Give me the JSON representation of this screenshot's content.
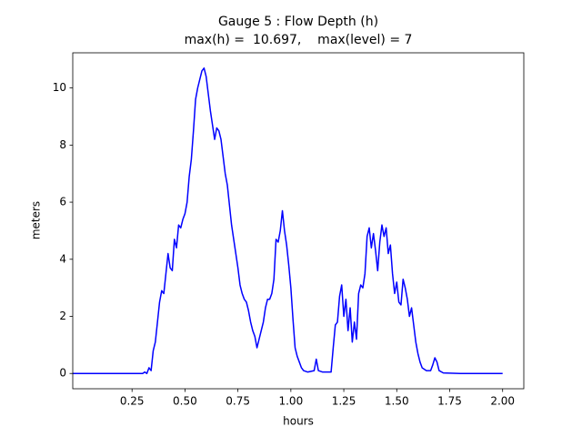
{
  "chart_data": {
    "type": "line",
    "title": "Gauge 5 : Flow Depth (h)",
    "subtitle": "max(h) =  10.697,    max(level) = 7",
    "xlabel": "hours",
    "ylabel": "meters",
    "xlim": [
      -0.03,
      2.1
    ],
    "ylim": [
      -0.535,
      11.232
    ],
    "xticks": [
      0.25,
      {
        "value": 0.5,
        "label": "0.50"
      },
      0.75,
      {
        "value": 1,
        "label": "1.00"
      },
      1.25,
      {
        "value": 1.5,
        "label": "1.50"
      },
      1.75,
      {
        "value": 2,
        "label": "2.00"
      }
    ],
    "yticks": [
      0,
      2,
      4,
      6,
      8,
      10
    ],
    "x": [
      -0.03,
      0.3,
      0.31,
      0.32,
      0.33,
      0.34,
      0.35,
      0.36,
      0.37,
      0.38,
      0.39,
      0.4,
      0.41,
      0.42,
      0.43,
      0.44,
      0.45,
      0.46,
      0.47,
      0.48,
      0.49,
      0.5,
      0.51,
      0.52,
      0.53,
      0.54,
      0.55,
      0.56,
      0.57,
      0.58,
      0.59,
      0.6,
      0.61,
      0.62,
      0.63,
      0.64,
      0.65,
      0.66,
      0.67,
      0.68,
      0.69,
      0.7,
      0.71,
      0.72,
      0.73,
      0.74,
      0.75,
      0.76,
      0.77,
      0.78,
      0.79,
      0.8,
      0.81,
      0.82,
      0.83,
      0.84,
      0.85,
      0.86,
      0.87,
      0.88,
      0.89,
      0.9,
      0.91,
      0.92,
      0.93,
      0.94,
      0.95,
      0.96,
      0.97,
      0.98,
      0.99,
      1.0,
      1.01,
      1.02,
      1.03,
      1.04,
      1.05,
      1.06,
      1.08,
      1.11,
      1.12,
      1.13,
      1.15,
      1.19,
      1.2,
      1.21,
      1.22,
      1.23,
      1.24,
      1.25,
      1.26,
      1.27,
      1.28,
      1.29,
      1.3,
      1.31,
      1.32,
      1.33,
      1.34,
      1.35,
      1.36,
      1.37,
      1.38,
      1.39,
      1.4,
      1.41,
      1.42,
      1.43,
      1.44,
      1.45,
      1.46,
      1.47,
      1.48,
      1.49,
      1.5,
      1.51,
      1.52,
      1.53,
      1.54,
      1.55,
      1.56,
      1.57,
      1.58,
      1.59,
      1.6,
      1.61,
      1.62,
      1.64,
      1.66,
      1.67,
      1.68,
      1.69,
      1.7,
      1.72,
      1.8,
      2.0
    ],
    "series": [
      {
        "name": "h",
        "color": "#0000ff",
        "values": [
          0,
          0,
          0.05,
          0,
          0.2,
          0.1,
          0.8,
          1.1,
          1.8,
          2.5,
          2.9,
          2.8,
          3.5,
          4.2,
          3.7,
          3.6,
          4.7,
          4.4,
          5.2,
          5.1,
          5.4,
          5.6,
          6.0,
          6.9,
          7.5,
          8.5,
          9.6,
          10.0,
          10.3,
          10.6,
          10.697,
          10.4,
          9.8,
          9.2,
          8.7,
          8.2,
          8.6,
          8.5,
          8.2,
          7.6,
          7.0,
          6.6,
          5.9,
          5.2,
          4.7,
          4.2,
          3.7,
          3.1,
          2.8,
          2.6,
          2.5,
          2.2,
          1.8,
          1.5,
          1.3,
          0.9,
          1.2,
          1.5,
          1.8,
          2.3,
          2.6,
          2.6,
          2.8,
          3.3,
          4.7,
          4.6,
          5.0,
          5.7,
          5.0,
          4.5,
          3.8,
          3.0,
          1.9,
          0.9,
          0.6,
          0.4,
          0.2,
          0.1,
          0.05,
          0.1,
          0.5,
          0.1,
          0.05,
          0.05,
          0.9,
          1.7,
          1.8,
          2.7,
          3.1,
          2.0,
          2.6,
          1.5,
          2.3,
          1.1,
          1.8,
          1.2,
          2.8,
          3.1,
          3.0,
          3.5,
          4.8,
          5.1,
          4.4,
          4.9,
          4.3,
          3.6,
          4.6,
          5.2,
          4.8,
          5.1,
          4.2,
          4.5,
          3.5,
          2.8,
          3.2,
          2.5,
          2.4,
          3.3,
          3.0,
          2.6,
          2.0,
          2.3,
          1.7,
          1.1,
          0.7,
          0.4,
          0.2,
          0.1,
          0.1,
          0.3,
          0.55,
          0.4,
          0.1,
          0.02,
          0,
          0
        ]
      }
    ]
  }
}
